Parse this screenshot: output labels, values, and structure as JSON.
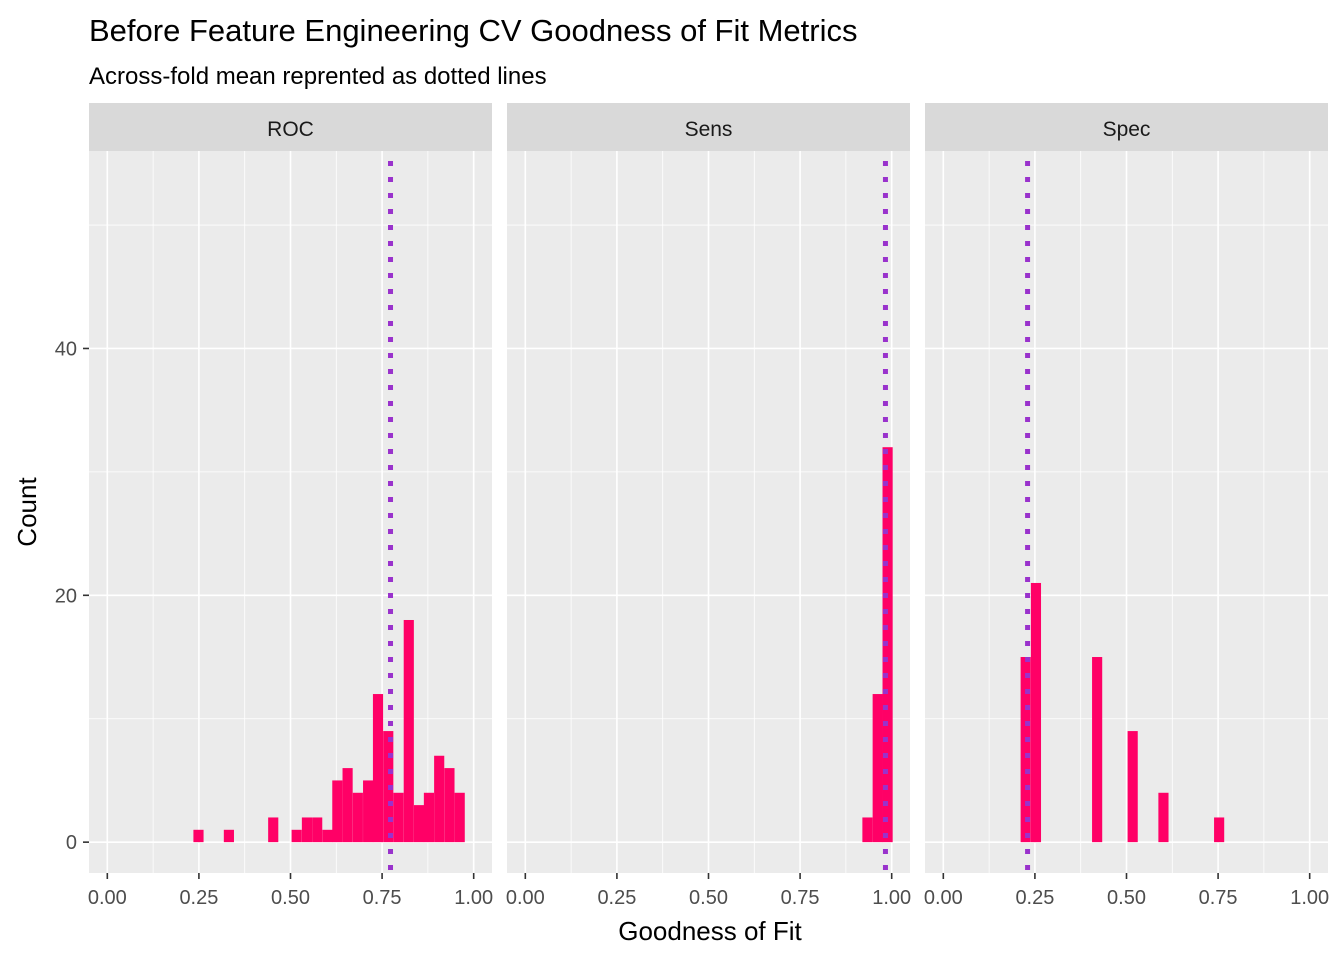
{
  "chart_data": {
    "type": "bar",
    "title": "Before Feature Engineering CV Goodness of Fit Metrics",
    "subtitle": "Across-fold mean reprented as dotted lines",
    "xlabel": "Goodness of Fit",
    "ylabel": "Count",
    "xlim": [
      -0.05,
      1.05
    ],
    "ylim": [
      -2.5,
      56
    ],
    "x_ticks": [
      0,
      0.25,
      0.5,
      0.75,
      1.0
    ],
    "x_tick_labels": [
      "0.00",
      "0.25",
      "0.50",
      "0.75",
      "1.00"
    ],
    "y_ticks": [
      0,
      20,
      40
    ],
    "y_tick_labels": [
      "0",
      "20",
      "40"
    ],
    "bin_width": 0.0277,
    "colors": {
      "bar": "#ff0066",
      "mean_line": "#9932cc",
      "panel_bg": "#ebebeb",
      "strip_bg": "#d9d9d9",
      "grid": "#ffffff"
    },
    "facets": [
      {
        "name": "ROC",
        "mean": 0.773,
        "bins": [
          {
            "x": 0.235,
            "count": 1
          },
          {
            "x": 0.318,
            "count": 1
          },
          {
            "x": 0.439,
            "count": 2
          },
          {
            "x": 0.503,
            "count": 1
          },
          {
            "x": 0.531,
            "count": 2
          },
          {
            "x": 0.559,
            "count": 2
          },
          {
            "x": 0.587,
            "count": 1
          },
          {
            "x": 0.614,
            "count": 5
          },
          {
            "x": 0.642,
            "count": 6
          },
          {
            "x": 0.67,
            "count": 4
          },
          {
            "x": 0.698,
            "count": 5
          },
          {
            "x": 0.725,
            "count": 12
          },
          {
            "x": 0.753,
            "count": 9
          },
          {
            "x": 0.781,
            "count": 4
          },
          {
            "x": 0.809,
            "count": 18
          },
          {
            "x": 0.837,
            "count": 3
          },
          {
            "x": 0.864,
            "count": 4
          },
          {
            "x": 0.892,
            "count": 7
          },
          {
            "x": 0.92,
            "count": 6
          },
          {
            "x": 0.948,
            "count": 4
          }
        ]
      },
      {
        "name": "Sens",
        "mean": 0.983,
        "bins": [
          {
            "x": 0.92,
            "count": 2
          },
          {
            "x": 0.948,
            "count": 12
          },
          {
            "x": 0.975,
            "count": 32
          }
        ]
      },
      {
        "name": "Spec",
        "mean": 0.23,
        "bins": [
          {
            "x": 0.211,
            "count": 15
          },
          {
            "x": 0.239,
            "count": 21
          },
          {
            "x": 0.406,
            "count": 15
          },
          {
            "x": 0.503,
            "count": 9
          },
          {
            "x": 0.587,
            "count": 4
          },
          {
            "x": 0.739,
            "count": 2
          }
        ]
      }
    ]
  }
}
